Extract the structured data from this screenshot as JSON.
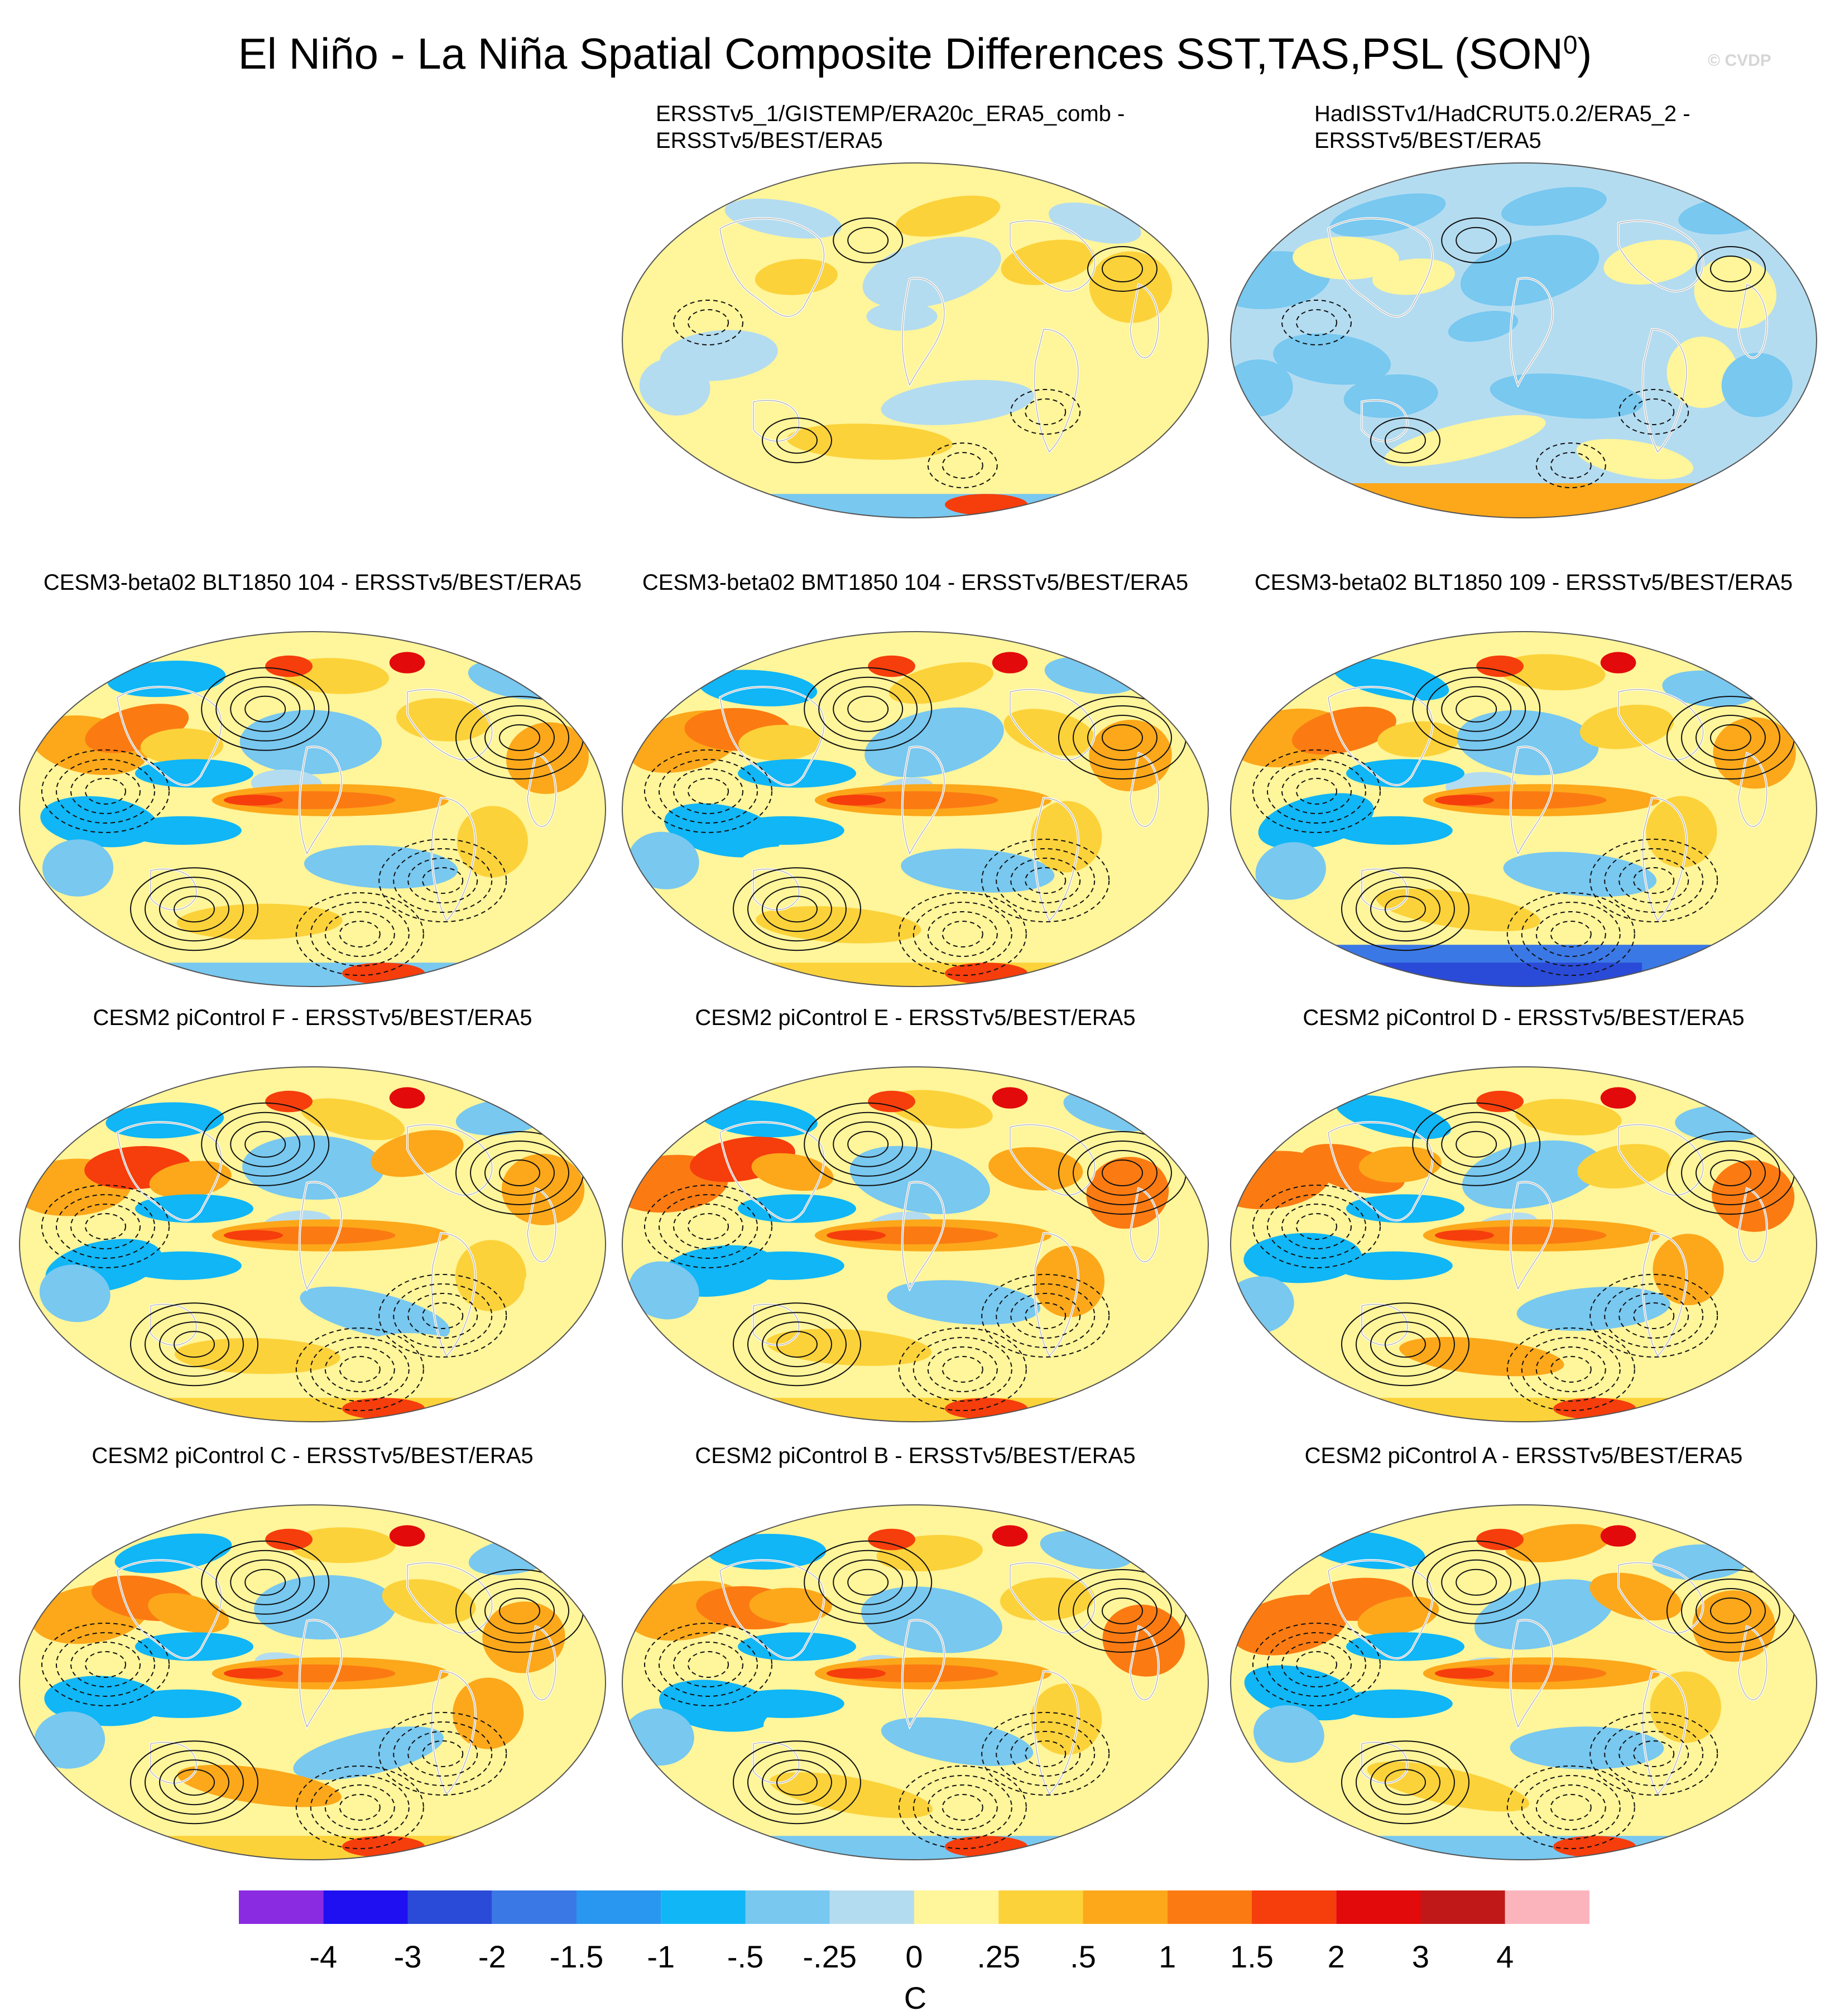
{
  "header": {
    "title": "El Niño - La Niña Spatial Composite Differences SST,TAS,PSL (SON",
    "title_superscript": "0",
    "title_close": ")",
    "copyright": "© CVDP"
  },
  "panels": [
    {
      "title_line1": "ERSSTv5_1/GISTEMP/ERA20c_ERA5_comb -",
      "title_line2": "ERSSTv5/BEST/ERA5",
      "style": "obs1"
    },
    {
      "title_line1": "HadISSTv1/HadCRUT5.0.2/ERA5_2 -",
      "title_line2": "ERSSTv5/BEST/ERA5",
      "style": "obs2"
    },
    {
      "title": "CESM3-beta02 BLT1850 104 - ERSSTv5/BEST/ERA5",
      "style": "model"
    },
    {
      "title": "CESM3-beta02 BMT1850 104 - ERSSTv5/BEST/ERA5",
      "style": "model"
    },
    {
      "title": "CESM3-beta02 BLT1850 109 - ERSSTv5/BEST/ERA5",
      "style": "model-cold-south"
    },
    {
      "title": "CESM2 piControl F - ERSSTv5/BEST/ERA5",
      "style": "model-strong"
    },
    {
      "title": "CESM2 piControl E - ERSSTv5/BEST/ERA5",
      "style": "model-strong"
    },
    {
      "title": "CESM2 piControl D - ERSSTv5/BEST/ERA5",
      "style": "model-strong"
    },
    {
      "title": "CESM2 piControl C - ERSSTv5/BEST/ERA5",
      "style": "model-strong"
    },
    {
      "title": "CESM2 piControl B - ERSSTv5/BEST/ERA5",
      "style": "model-strong"
    },
    {
      "title": "CESM2 piControl A - ERSSTv5/BEST/ERA5",
      "style": "model-strong"
    }
  ],
  "colorbar": {
    "unit": "C",
    "labels": [
      "-4",
      "-3",
      "-2",
      "-1.5",
      "-1",
      "-.5",
      "-.25",
      "0",
      ".25",
      ".5",
      "1",
      "1.5",
      "2",
      "3",
      "4"
    ],
    "colors": [
      "#8a2be2",
      "#1e10f0",
      "#2a4ad8",
      "#3a78e6",
      "#2996f0",
      "#10b6f6",
      "#78c8f0",
      "#b4dcf0",
      "#fff59a",
      "#fcd23a",
      "#fca81a",
      "#fb7b12",
      "#f63d0c",
      "#e20a0a",
      "#c01818",
      "#fcb4bc"
    ]
  },
  "chart_data": {
    "type": "heatmap",
    "title": "El Niño - La Niña Spatial Composite Differences SST,TAS,PSL (SON0)",
    "season": "SON",
    "variables": [
      "SST",
      "TAS",
      "PSL"
    ],
    "colorbar_unit": "C",
    "colorbar_levels": [
      -4,
      -3,
      -2,
      -1.5,
      -1,
      -0.5,
      -0.25,
      0,
      0.25,
      0.5,
      1,
      1.5,
      2,
      3,
      4
    ],
    "panels": [
      "ERSSTv5_1/GISTEMP/ERA20c_ERA5_comb - ERSSTv5/BEST/ERA5",
      "HadISSTv1/HadCRUT5.0.2/ERA5_2 - ERSSTv5/BEST/ERA5",
      "CESM3-beta02 BLT1850 104 - ERSSTv5/BEST/ERA5",
      "CESM3-beta02 BMT1850 104 - ERSSTv5/BEST/ERA5",
      "CESM3-beta02 BLT1850 109 - ERSSTv5/BEST/ERA5",
      "CESM2 piControl F - ERSSTv5/BEST/ERA5",
      "CESM2 piControl E - ERSSTv5/BEST/ERA5",
      "CESM2 piControl D - ERSSTv5/BEST/ERA5",
      "CESM2 piControl C - ERSSTv5/BEST/ERA5",
      "CESM2 piControl B - ERSSTv5/BEST/ERA5",
      "CESM2 piControl A - ERSSTv5/BEST/ERA5"
    ]
  }
}
